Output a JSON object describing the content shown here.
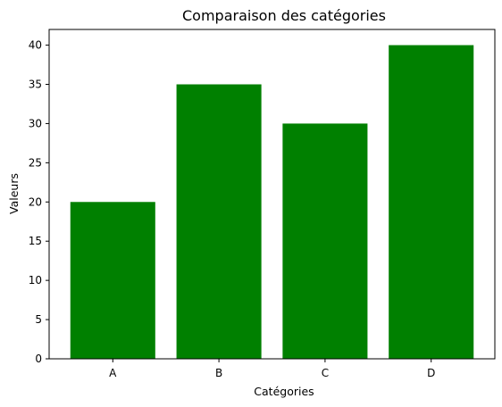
{
  "chart_data": {
    "type": "bar",
    "title": "Comparaison des catégories",
    "xlabel": "Catégories",
    "ylabel": "Valeurs",
    "categories": [
      "A",
      "B",
      "C",
      "D"
    ],
    "values": [
      20,
      35,
      30,
      40
    ],
    "ylim": [
      0,
      42
    ],
    "yticks": [
      0,
      5,
      10,
      15,
      20,
      25,
      30,
      35,
      40
    ],
    "bar_color": "#008000",
    "grid": false,
    "legend": "none"
  }
}
